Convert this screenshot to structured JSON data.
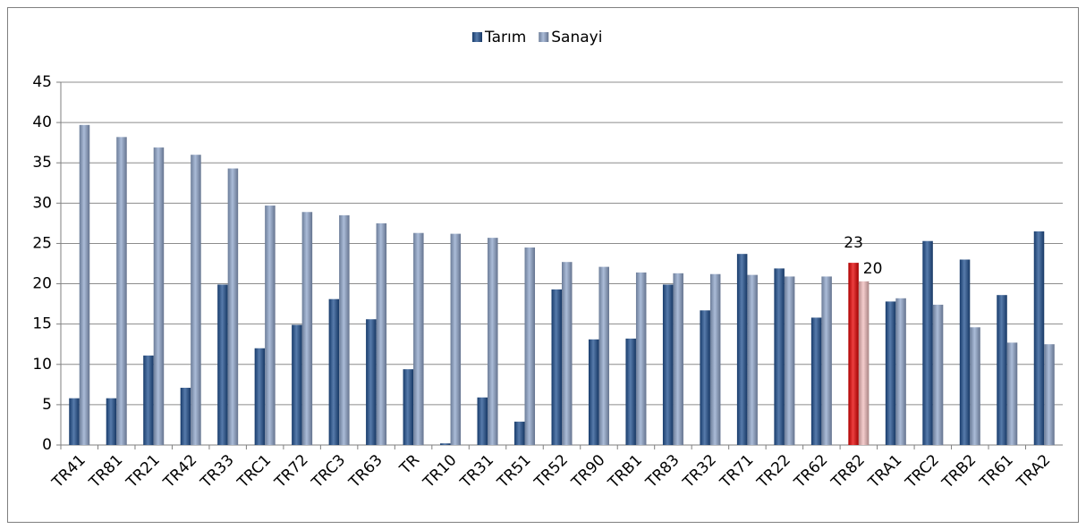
{
  "chart_data": {
    "type": "bar",
    "categories": [
      "TR41",
      "TR81",
      "TR21",
      "TR42",
      "TR33",
      "TRC1",
      "TR72",
      "TRC3",
      "TR63",
      "TR",
      "TR10",
      "TR31",
      "TR51",
      "TR52",
      "TR90",
      "TRB1",
      "TR83",
      "TR32",
      "TR71",
      "TR22",
      "TR62",
      "TR82",
      "TRA1",
      "TRC2",
      "TRB2",
      "TR61",
      "TRA2"
    ],
    "series": [
      {
        "name": "Tarım",
        "color": "#1f4f8f",
        "highlight_index": 21,
        "highlight_color": "#e60000",
        "values": [
          5.8,
          5.8,
          11.1,
          7.1,
          19.9,
          12.0,
          14.9,
          18.1,
          15.6,
          9.4,
          0.2,
          5.9,
          2.9,
          19.3,
          13.1,
          13.2,
          19.9,
          16.7,
          23.7,
          21.9,
          15.8,
          22.6,
          17.8,
          25.3,
          23.0,
          18.6,
          26.5
        ],
        "value_labels": [
          null,
          null,
          null,
          null,
          null,
          null,
          null,
          null,
          null,
          null,
          null,
          null,
          null,
          null,
          null,
          null,
          null,
          null,
          null,
          null,
          null,
          "23",
          null,
          null,
          null,
          null,
          null
        ]
      },
      {
        "name": "Sanayi",
        "color": "#8fa5cb",
        "highlight_index": 21,
        "highlight_color": "#f2bcbc",
        "values": [
          39.7,
          38.2,
          36.9,
          36.0,
          34.3,
          29.7,
          28.9,
          28.5,
          27.5,
          26.3,
          26.2,
          25.7,
          24.5,
          22.7,
          22.1,
          21.4,
          21.3,
          21.2,
          21.1,
          20.9,
          20.9,
          20.3,
          18.2,
          17.4,
          14.6,
          12.7,
          12.5
        ],
        "value_labels": [
          null,
          null,
          null,
          null,
          null,
          null,
          null,
          null,
          null,
          null,
          null,
          null,
          null,
          null,
          null,
          null,
          null,
          null,
          null,
          null,
          null,
          "20",
          null,
          null,
          null,
          null,
          null
        ]
      }
    ],
    "ylim": [
      0,
      45
    ],
    "yticks": [
      0,
      5,
      10,
      15,
      20,
      25,
      30,
      35,
      40,
      45
    ],
    "grid": true,
    "legend": "top"
  }
}
